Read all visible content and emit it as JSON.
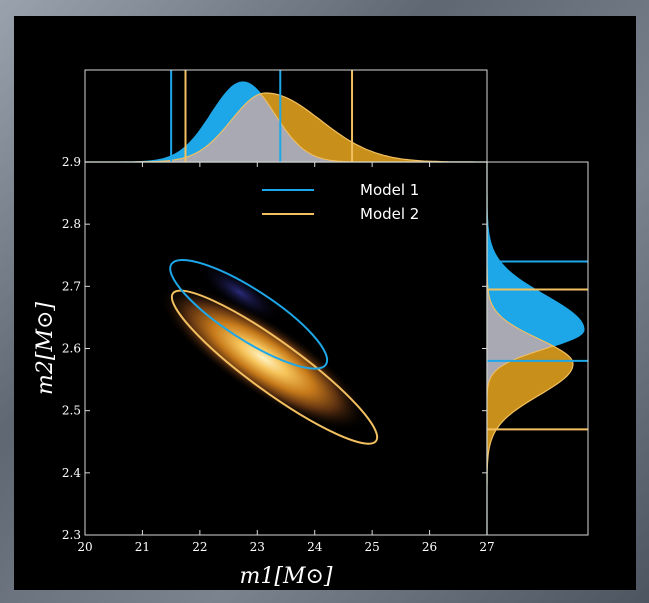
{
  "chart_data": {
    "type": "scatter",
    "title": "",
    "xlabel": "m1[M⊙]",
    "ylabel": "m2[M⊙]",
    "xlim": [
      20,
      27
    ],
    "ylim": [
      2.3,
      2.9
    ],
    "x_ticks": [
      "20",
      "21",
      "22",
      "23",
      "24",
      "25",
      "26",
      "27"
    ],
    "y_ticks": [
      "2.3",
      "2.4",
      "2.5",
      "2.6",
      "2.7",
      "2.8",
      "2.9"
    ],
    "grid": false,
    "legend_position": "top-center",
    "background": "#000000",
    "series": [
      {
        "name": "Model 1",
        "color": "#1ea7e8",
        "contour_center": [
          22.85,
          2.655
        ],
        "contour_extent_m1": [
          21.4,
          23.85
        ],
        "contour_extent_m2": [
          2.55,
          2.76
        ],
        "m1_interval": [
          21.5,
          23.4
        ],
        "m1_peak": 22.75,
        "m2_interval": [
          2.58,
          2.74
        ],
        "m2_peak": 2.63
      },
      {
        "name": "Model 2",
        "color": "#f2c060",
        "contour_center": [
          23.3,
          2.57
        ],
        "contour_extent_m1": [
          21.7,
          25.1
        ],
        "contour_extent_m2": [
          2.43,
          2.71
        ],
        "m1_interval": [
          21.75,
          24.65
        ],
        "m1_peak": 23.15,
        "m2_interval": [
          2.47,
          2.695
        ],
        "m2_peak": 2.575
      }
    ],
    "density_peak": [
      23.1,
      2.585
    ]
  }
}
